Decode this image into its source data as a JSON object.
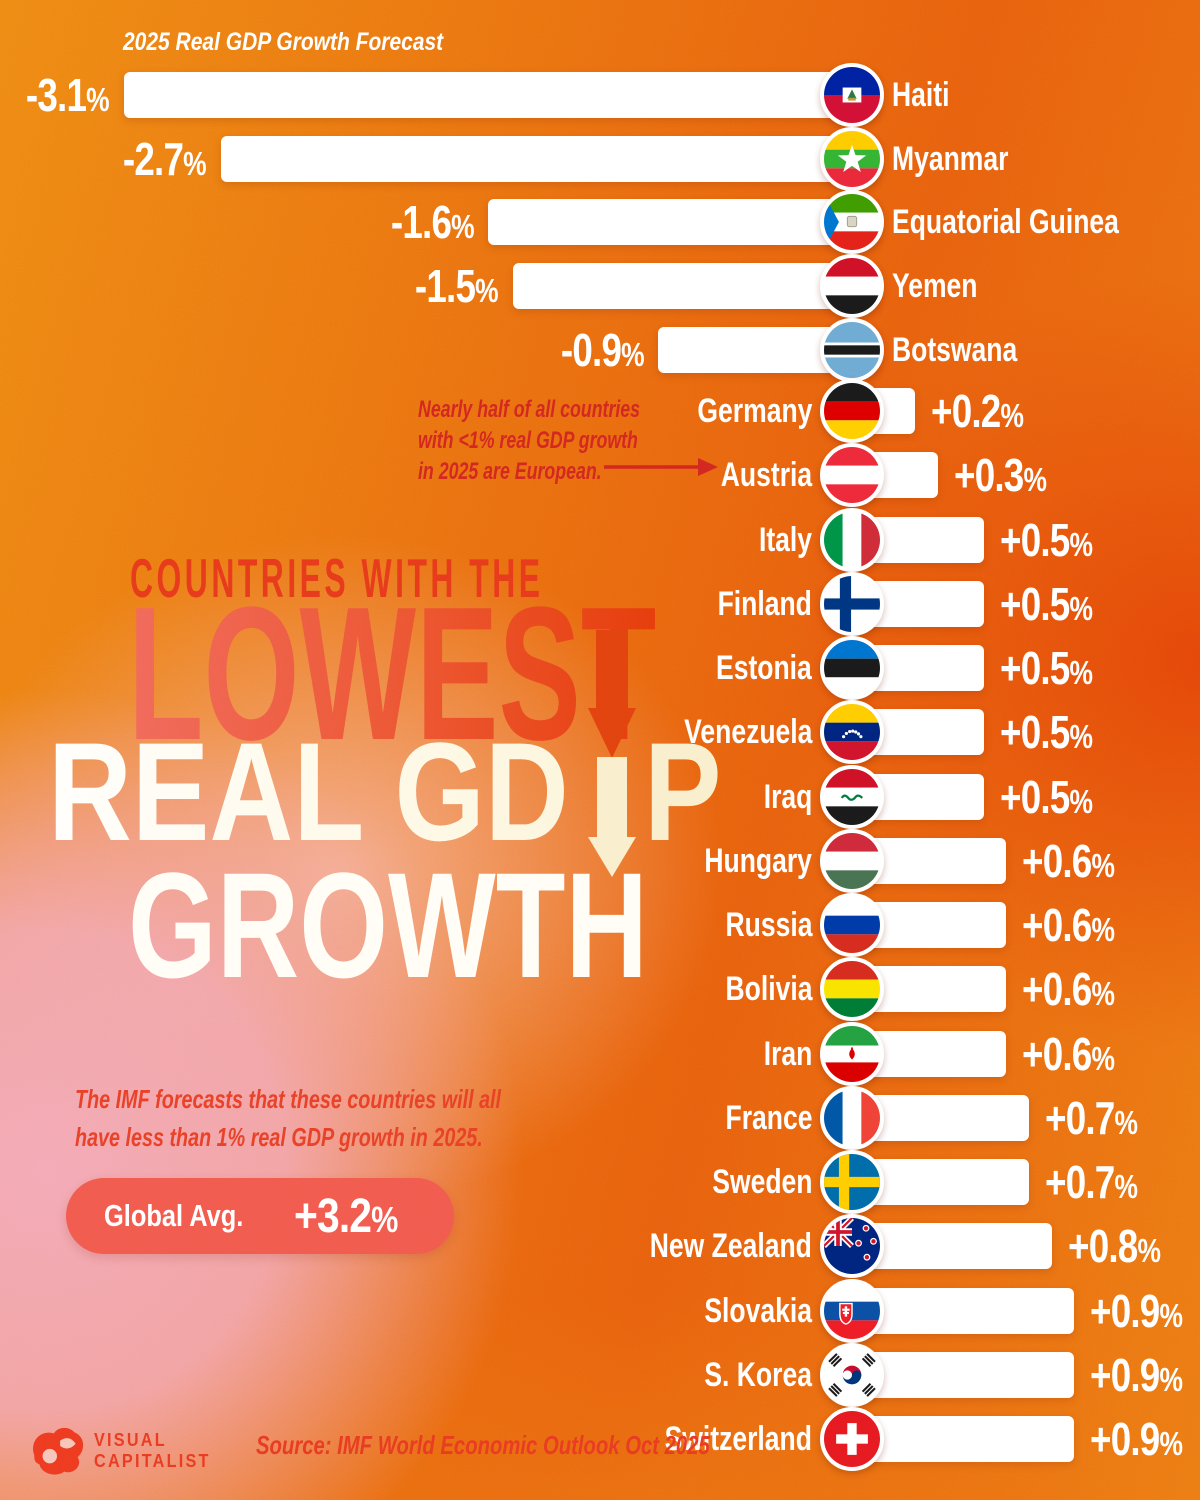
{
  "annotation": {
    "line1": "Nearly half of all countries",
    "line2": "with <1% real GDP growth",
    "line3": "in 2025 are European."
  },
  "title": {
    "kicker": "COUNTRIES WITH THE",
    "line1": "LOWEST",
    "line2": "REAL GDP",
    "line3": "GROWTH"
  },
  "subtitle": {
    "line1": "The IMF forecasts that these countries will all",
    "line2": "have less than 1% real GDP growth in 2025."
  },
  "footer": {
    "brand_line1": "VISUAL",
    "brand_line2": "CAPITALIST",
    "source": "Source: IMF World Economic Outlook Oct 2025"
  },
  "colors": {
    "accent_red": "#d22720",
    "title_red": "#e73a1b",
    "badge_coral": "#f15a4d",
    "bar_white": "#ffffff",
    "bg_orange": "#e8600e",
    "bg_pink": "#f3a9b6",
    "cream": "#f9efcd"
  },
  "chart_data": {
    "type": "bar",
    "title": "Countries with the Lowest Real GDP Growth",
    "forecast_label": "2025 Real GDP Growth Forecast",
    "unit": "% real GDP growth (2025 forecast)",
    "xlim": [
      -3.5,
      1.0
    ],
    "global_avg_label": "Global Avg.",
    "global_avg_value": "+3.2%",
    "global_avg": 3.2,
    "negative": [
      {
        "country": "Haiti",
        "value": -3.1,
        "label": "-3.1%",
        "flag": "haiti"
      },
      {
        "country": "Myanmar",
        "value": -2.7,
        "label": "-2.7%",
        "flag": "myanmar"
      },
      {
        "country": "Equatorial Guinea",
        "value": -1.6,
        "label": "-1.6%",
        "flag": "equatorial-guinea"
      },
      {
        "country": "Yemen",
        "value": -1.5,
        "label": "-1.5%",
        "flag": "yemen"
      },
      {
        "country": "Botswana",
        "value": -0.9,
        "label": "-0.9%",
        "flag": "botswana"
      }
    ],
    "positive": [
      {
        "country": "Germany",
        "value": 0.2,
        "label": "+0.2%",
        "flag": "germany"
      },
      {
        "country": "Austria",
        "value": 0.3,
        "label": "+0.3%",
        "flag": "austria"
      },
      {
        "country": "Italy",
        "value": 0.5,
        "label": "+0.5%",
        "flag": "italy"
      },
      {
        "country": "Finland",
        "value": 0.5,
        "label": "+0.5%",
        "flag": "finland"
      },
      {
        "country": "Estonia",
        "value": 0.5,
        "label": "+0.5%",
        "flag": "estonia"
      },
      {
        "country": "Venezuela",
        "value": 0.5,
        "label": "+0.5%",
        "flag": "venezuela"
      },
      {
        "country": "Iraq",
        "value": 0.5,
        "label": "+0.5%",
        "flag": "iraq"
      },
      {
        "country": "Hungary",
        "value": 0.6,
        "label": "+0.6%",
        "flag": "hungary"
      },
      {
        "country": "Russia",
        "value": 0.6,
        "label": "+0.6%",
        "flag": "russia"
      },
      {
        "country": "Bolivia",
        "value": 0.6,
        "label": "+0.6%",
        "flag": "bolivia"
      },
      {
        "country": "Iran",
        "value": 0.6,
        "label": "+0.6%",
        "flag": "iran"
      },
      {
        "country": "France",
        "value": 0.7,
        "label": "+0.7%",
        "flag": "france"
      },
      {
        "country": "Sweden",
        "value": 0.7,
        "label": "+0.7%",
        "flag": "sweden"
      },
      {
        "country": "New Zealand",
        "value": 0.8,
        "label": "+0.8%",
        "flag": "new-zealand"
      },
      {
        "country": "Slovakia",
        "value": 0.9,
        "label": "+0.9%",
        "flag": "slovakia"
      },
      {
        "country": "S. Korea",
        "value": 0.9,
        "label": "+0.9%",
        "flag": "south-korea"
      },
      {
        "country": "Switzerland",
        "value": 0.9,
        "label": "+0.9%",
        "flag": "switzerland"
      }
    ]
  }
}
